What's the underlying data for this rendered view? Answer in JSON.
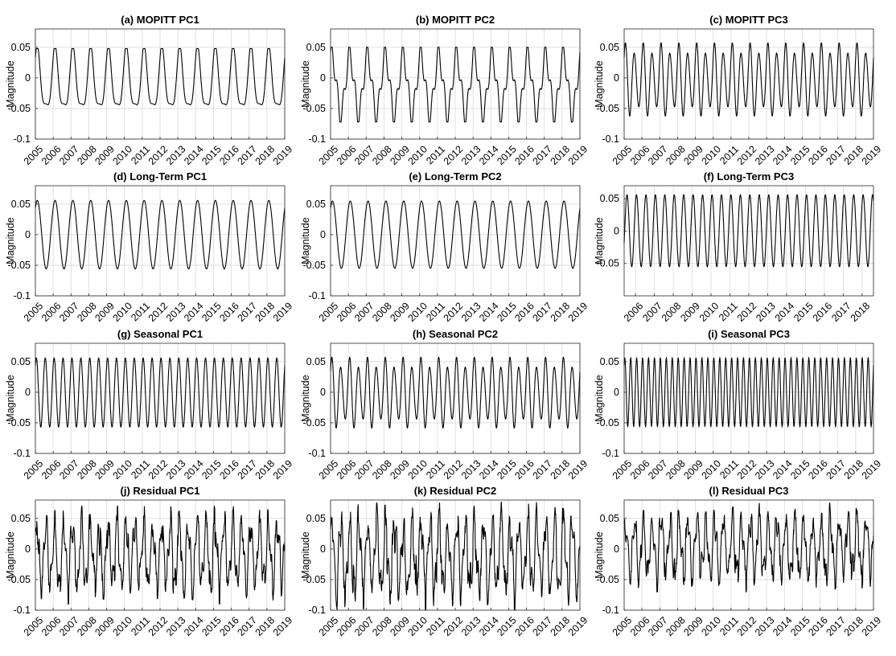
{
  "figure": {
    "line_color": "#000000",
    "grid_color": "#d9d9d9",
    "axis_color": "#262626",
    "background": "#ffffff"
  },
  "chart_data": [
    {
      "type": "line",
      "title": "(a) MOPITT PC1",
      "ylabel": "Magnitude",
      "xlim": [
        2005,
        2019
      ],
      "ylim": [
        -0.1,
        0.08
      ],
      "xticks": [
        "2005",
        "2006",
        "2007",
        "2008",
        "2009",
        "2010",
        "2011",
        "2012",
        "2013",
        "2014",
        "2015",
        "2016",
        "2017",
        "2018",
        "2019"
      ],
      "yticks": [
        "-0.1",
        "-0.05",
        "0",
        "0.05"
      ],
      "grid": true,
      "series": [
        {
          "style": "skewed",
          "cycles_per_year": 1,
          "amplitude_max": 0.048,
          "amplitude_min": -0.065
        }
      ]
    },
    {
      "type": "line",
      "title": "(b) MOPITT PC2",
      "ylabel": "Magnitude",
      "xlim": [
        2005,
        2019
      ],
      "ylim": [
        -0.1,
        0.08
      ],
      "xticks": [
        "2005",
        "2006",
        "2007",
        "2008",
        "2009",
        "2010",
        "2011",
        "2012",
        "2013",
        "2014",
        "2015",
        "2016",
        "2017",
        "2018",
        "2019"
      ],
      "yticks": [
        "-0.1",
        "-0.05",
        "0",
        "0.05"
      ],
      "grid": true,
      "series": [
        {
          "style": "shoulder",
          "cycles_per_year": 1,
          "amplitude_max": 0.05,
          "amplitude_min": -0.072
        }
      ]
    },
    {
      "type": "line",
      "title": "(c) MOPITT PC3",
      "ylabel": "Magnitude",
      "xlim": [
        2005,
        2019
      ],
      "ylim": [
        -0.1,
        0.08
      ],
      "xticks": [
        "2005",
        "2006",
        "2007",
        "2008",
        "2009",
        "2010",
        "2011",
        "2012",
        "2013",
        "2014",
        "2015",
        "2016",
        "2017",
        "2018",
        "2019"
      ],
      "yticks": [
        "-0.1",
        "-0.05",
        "0",
        "0.05"
      ],
      "grid": true,
      "series": [
        {
          "style": "beat",
          "cycles_per_year": 2,
          "amplitude_max": 0.06,
          "amplitude_min": -0.066
        }
      ]
    },
    {
      "type": "line",
      "title": "(d) Long-Term PC1",
      "ylabel": "Magnitude",
      "xlim": [
        2005,
        2019
      ],
      "ylim": [
        -0.1,
        0.08
      ],
      "xticks": [
        "2005",
        "2006",
        "2007",
        "2008",
        "2009",
        "2010",
        "2011",
        "2012",
        "2013",
        "2014",
        "2015",
        "2016",
        "2017",
        "2018",
        "2019"
      ],
      "yticks": [
        "-0.1",
        "-0.05",
        "0",
        "0.05"
      ],
      "grid": true,
      "series": [
        {
          "style": "sine",
          "cycles_per_year": 1,
          "amplitude_max": 0.056,
          "amplitude_min": -0.056
        }
      ]
    },
    {
      "type": "line",
      "title": "(e) Long-Term PC2",
      "ylabel": "Magnitude",
      "xlim": [
        2005,
        2019
      ],
      "ylim": [
        -0.1,
        0.08
      ],
      "xticks": [
        "2005",
        "2006",
        "2007",
        "2008",
        "2009",
        "2010",
        "2011",
        "2012",
        "2013",
        "2014",
        "2015",
        "2016",
        "2017",
        "2018",
        "2019"
      ],
      "yticks": [
        "-0.1",
        "-0.05",
        "0",
        "0.05"
      ],
      "grid": true,
      "series": [
        {
          "style": "sine",
          "cycles_per_year": 1,
          "amplitude_max": 0.055,
          "amplitude_min": -0.055
        }
      ]
    },
    {
      "type": "line",
      "title": "(f) Long-Term PC3",
      "ylabel": "Magnitude",
      "xlim": [
        2005.4,
        2018.6
      ],
      "ylim": [
        -0.1,
        0.07
      ],
      "xticks": [
        "2006",
        "2007",
        "2008",
        "2009",
        "2010",
        "2011",
        "2012",
        "2013",
        "2014",
        "2015",
        "2016",
        "2017",
        "2018"
      ],
      "yticks": [
        "-0.05",
        "0",
        "0.05"
      ],
      "grid": true,
      "series": [
        {
          "style": "sine",
          "cycles_per_year": 2,
          "amplitude_max": 0.056,
          "amplitude_min": -0.055
        }
      ]
    },
    {
      "type": "line",
      "title": "(g) Seasonal PC1",
      "ylabel": "Magnitude",
      "xlim": [
        2005,
        2019
      ],
      "ylim": [
        -0.1,
        0.08
      ],
      "xticks": [
        "2005",
        "2006",
        "2007",
        "2008",
        "2009",
        "2010",
        "2011",
        "2012",
        "2013",
        "2014",
        "2015",
        "2016",
        "2017",
        "2018",
        "2019"
      ],
      "yticks": [
        "-0.1",
        "-0.05",
        "0",
        "0.05"
      ],
      "grid": true,
      "series": [
        {
          "style": "sine",
          "cycles_per_year": 2,
          "amplitude_max": 0.056,
          "amplitude_min": -0.057
        }
      ]
    },
    {
      "type": "line",
      "title": "(h) Seasonal PC2",
      "ylabel": "Magnitude",
      "xlim": [
        2005,
        2019
      ],
      "ylim": [
        -0.1,
        0.08
      ],
      "xticks": [
        "2005",
        "2006",
        "2007",
        "2008",
        "2009",
        "2010",
        "2011",
        "2012",
        "2013",
        "2014",
        "2015",
        "2016",
        "2017",
        "2018",
        "2019"
      ],
      "yticks": [
        "-0.1",
        "-0.05",
        "0",
        "0.05"
      ],
      "grid": true,
      "series": [
        {
          "style": "beat",
          "cycles_per_year": 2,
          "amplitude_max": 0.06,
          "amplitude_min": -0.062
        }
      ]
    },
    {
      "type": "line",
      "title": "(i) Seasonal PC3",
      "ylabel": "Magnitude",
      "xlim": [
        2005,
        2019
      ],
      "ylim": [
        -0.1,
        0.08
      ],
      "xticks": [
        "2005",
        "2006",
        "2007",
        "2008",
        "2009",
        "2010",
        "2011",
        "2012",
        "2013",
        "2014",
        "2015",
        "2016",
        "2017",
        "2018",
        "2019"
      ],
      "yticks": [
        "-0.1",
        "-0.05",
        "0",
        "0.05"
      ],
      "grid": true,
      "series": [
        {
          "style": "sine",
          "cycles_per_year": 3,
          "amplitude_max": 0.056,
          "amplitude_min": -0.056
        }
      ]
    },
    {
      "type": "line",
      "title": "(j) Residual PC1",
      "ylabel": "Magnitude",
      "xlim": [
        2005,
        2019
      ],
      "ylim": [
        -0.1,
        0.08
      ],
      "xticks": [
        "2005",
        "2006",
        "2007",
        "2008",
        "2009",
        "2010",
        "2011",
        "2012",
        "2013",
        "2014",
        "2015",
        "2016",
        "2017",
        "2018",
        "2019"
      ],
      "yticks": [
        "-0.1",
        "-0.05",
        "0",
        "0.05"
      ],
      "grid": true,
      "series": [
        {
          "style": "noisy",
          "cycles_per_year": 2,
          "amplitude_max": 0.07,
          "amplitude_min": -0.09,
          "seed": 11
        }
      ]
    },
    {
      "type": "line",
      "title": "(k) Residual PC2",
      "ylabel": "Magnitude",
      "xlim": [
        2005,
        2019
      ],
      "ylim": [
        -0.1,
        0.08
      ],
      "xticks": [
        "2005",
        "2006",
        "2007",
        "2008",
        "2009",
        "2010",
        "2011",
        "2012",
        "2013",
        "2014",
        "2015",
        "2016",
        "2017",
        "2018",
        "2019"
      ],
      "yticks": [
        "-0.1",
        "-0.05",
        "0",
        "0.05"
      ],
      "grid": true,
      "series": [
        {
          "style": "noisy",
          "cycles_per_year": 2,
          "amplitude_max": 0.078,
          "amplitude_min": -0.1,
          "seed": 23
        }
      ]
    },
    {
      "type": "line",
      "title": "(l) Residual PC3",
      "ylabel": "Magnitude",
      "xlim": [
        2005,
        2019
      ],
      "ylim": [
        -0.1,
        0.08
      ],
      "xticks": [
        "2005",
        "2006",
        "2007",
        "2008",
        "2009",
        "2010",
        "2011",
        "2012",
        "2013",
        "2014",
        "2015",
        "2016",
        "2017",
        "2018",
        "2019"
      ],
      "yticks": [
        "-0.1",
        "-0.05",
        "0",
        "0.05"
      ],
      "grid": true,
      "series": [
        {
          "style": "noisy",
          "cycles_per_year": 2,
          "amplitude_max": 0.075,
          "amplitude_min": -0.07,
          "seed": 37
        }
      ]
    }
  ]
}
